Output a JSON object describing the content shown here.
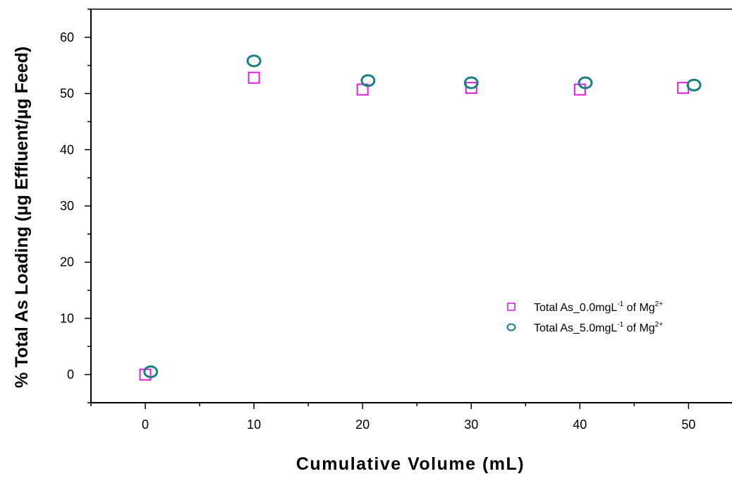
{
  "chart_data": {
    "type": "scatter",
    "xlabel": "Cumulative Volume (mL)",
    "ylabel": "% Total As Loading (µg Effluent/µg Feed)",
    "xlim": [
      -5,
      54
    ],
    "ylim": [
      -5,
      65
    ],
    "xticks": [
      0,
      10,
      20,
      30,
      40,
      50
    ],
    "yticks": [
      0,
      10,
      20,
      30,
      40,
      50,
      60
    ],
    "grid": false,
    "legend_position": "right",
    "series": [
      {
        "name_parts": [
          "Total As_0.0mgL",
          "-1",
          " of Mg",
          "2+"
        ],
        "marker": "square",
        "color": "#e020e0",
        "x": [
          0,
          10,
          20,
          30,
          40,
          49.5
        ],
        "y": [
          0,
          52.8,
          50.7,
          51.0,
          50.7,
          51.0
        ]
      },
      {
        "name_parts": [
          "Total As_5.0mgL",
          "-1",
          " of Mg",
          "2+"
        ],
        "marker": "circle",
        "color": "#1a8080",
        "x": [
          0.5,
          10,
          20.5,
          30,
          40.5,
          50.5
        ],
        "y": [
          0.5,
          55.8,
          52.3,
          51.9,
          51.9,
          51.5
        ]
      }
    ]
  }
}
